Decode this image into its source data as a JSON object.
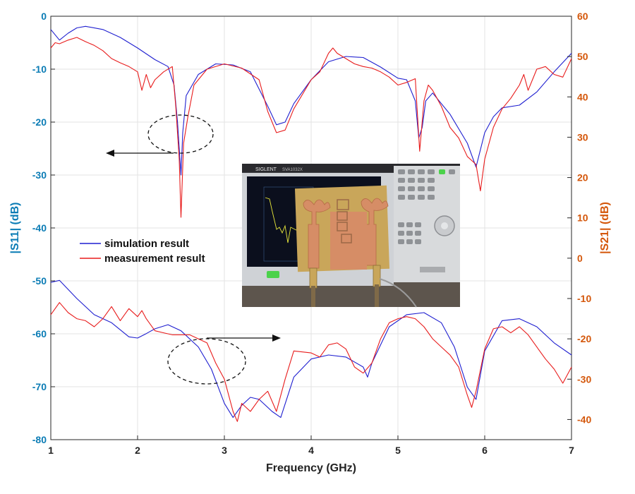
{
  "chart_data": {
    "type": "line",
    "xlabel": "Frequency (GHz)",
    "ylabel_left": "|S11| (dB)",
    "ylabel_right": "|S21| (dB)",
    "xlim": [
      1,
      7
    ],
    "ylim_left": [
      -80,
      0
    ],
    "ylim_right": [
      -45,
      60
    ],
    "xticks": [
      "1",
      "2",
      "3",
      "4",
      "5",
      "6",
      "7"
    ],
    "yticks_left": [
      "0",
      "-10",
      "-20",
      "-30",
      "-40",
      "-50",
      "-60",
      "-70",
      "-80"
    ],
    "yticks_right": [
      "60",
      "50",
      "40",
      "30",
      "20",
      "10",
      "0",
      "-10",
      "-20",
      "-30",
      "-40"
    ],
    "grid": true,
    "legend": {
      "placement": "middle-left",
      "entries": [
        {
          "label": "simulation result",
          "color": "#1f1fd0"
        },
        {
          "label": "measurement result",
          "color": "#e81c1c"
        }
      ]
    },
    "colors": {
      "left_axis": "#0b7cb5",
      "right_axis": "#d4570b"
    },
    "series": [
      {
        "name": "simulation result",
        "axis": "left",
        "color": "#1f1fd0",
        "x": [
          1.0,
          1.1,
          1.2,
          1.3,
          1.4,
          1.6,
          1.8,
          2.0,
          2.2,
          2.35,
          2.42,
          2.46,
          2.5,
          2.52,
          2.56,
          2.7,
          2.9,
          3.1,
          3.3,
          3.5,
          3.6,
          3.7,
          3.8,
          4.0,
          4.2,
          4.4,
          4.6,
          4.8,
          5.0,
          5.1,
          5.2,
          5.24,
          5.28,
          5.32,
          5.4,
          5.6,
          5.8,
          5.9,
          6.0,
          6.1,
          6.2,
          6.4,
          6.6,
          6.8,
          7.0
        ],
        "y": [
          -2.5,
          -4.5,
          -3.2,
          -2.2,
          -1.9,
          -2.5,
          -4.0,
          -6.0,
          -8.2,
          -9.5,
          -13.0,
          -20.0,
          -30.0,
          -22.0,
          -15.0,
          -11.0,
          -9.0,
          -9.2,
          -10.5,
          -17.0,
          -20.5,
          -20.0,
          -16.5,
          -12.0,
          -8.6,
          -7.6,
          -7.8,
          -9.6,
          -11.7,
          -12.0,
          -16.0,
          -23.0,
          -21.0,
          -16.0,
          -14.5,
          -18.5,
          -24.0,
          -28.5,
          -22.0,
          -19.0,
          -17.3,
          -16.8,
          -14.3,
          -10.5,
          -7.0
        ]
      },
      {
        "name": "measurement result",
        "axis": "left",
        "color": "#e81c1c",
        "x": [
          1.0,
          1.05,
          1.1,
          1.2,
          1.3,
          1.4,
          1.5,
          1.6,
          1.7,
          1.8,
          1.9,
          2.0,
          2.05,
          2.1,
          2.15,
          2.2,
          2.3,
          2.4,
          2.44,
          2.48,
          2.5,
          2.53,
          2.58,
          2.65,
          2.8,
          3.0,
          3.2,
          3.4,
          3.5,
          3.6,
          3.7,
          3.8,
          4.0,
          4.1,
          4.2,
          4.25,
          4.3,
          4.4,
          4.5,
          4.6,
          4.7,
          4.8,
          4.9,
          5.0,
          5.1,
          5.2,
          5.25,
          5.3,
          5.35,
          5.4,
          5.5,
          5.6,
          5.7,
          5.8,
          5.9,
          5.95,
          6.0,
          6.1,
          6.2,
          6.3,
          6.4,
          6.45,
          6.5,
          6.6,
          6.7,
          6.8,
          6.9,
          7.0
        ],
        "y": [
          -6.0,
          -5.0,
          -5.2,
          -4.5,
          -4.0,
          -4.8,
          -5.5,
          -6.5,
          -8.0,
          -8.8,
          -9.5,
          -10.5,
          -14.0,
          -11.0,
          -13.5,
          -12.0,
          -10.5,
          -9.5,
          -17.0,
          -27.0,
          -38.0,
          -24.0,
          -19.0,
          -13.0,
          -10.0,
          -9.0,
          -9.8,
          -12.0,
          -18.0,
          -22.0,
          -21.5,
          -17.5,
          -12.0,
          -10.5,
          -7.0,
          -6.0,
          -7.0,
          -8.0,
          -9.0,
          -9.5,
          -9.8,
          -10.5,
          -11.5,
          -13.0,
          -12.5,
          -11.8,
          -25.5,
          -16.0,
          -13.0,
          -14.0,
          -17.0,
          -21.0,
          -23.0,
          -26.5,
          -28.0,
          -33.0,
          -27.0,
          -21.0,
          -17.5,
          -15.5,
          -13.0,
          -11.0,
          -14.0,
          -10.0,
          -9.5,
          -11.0,
          -11.5,
          -8.0
        ]
      },
      {
        "name": "simulation result",
        "axis": "right",
        "color": "#1f1fd0",
        "x": [
          1.0,
          1.1,
          1.3,
          1.5,
          1.7,
          1.9,
          2.0,
          2.1,
          2.2,
          2.35,
          2.5,
          2.7,
          2.85,
          3.0,
          3.1,
          3.2,
          3.3,
          3.4,
          3.55,
          3.65,
          3.8,
          4.0,
          4.2,
          4.4,
          4.6,
          4.65,
          4.7,
          4.9,
          5.1,
          5.3,
          5.5,
          5.65,
          5.8,
          5.9,
          6.0,
          6.2,
          6.4,
          6.6,
          6.8,
          7.0
        ],
        "y": [
          -6.0,
          -5.5,
          -10.0,
          -14.0,
          -16.0,
          -19.5,
          -19.8,
          -18.7,
          -17.5,
          -16.5,
          -18.0,
          -22.0,
          -27.5,
          -36.0,
          -39.5,
          -36.5,
          -34.5,
          -35.0,
          -38.0,
          -39.5,
          -29.5,
          -25.0,
          -24.0,
          -24.5,
          -27.0,
          -29.5,
          -26.0,
          -17.0,
          -14.0,
          -13.5,
          -16.0,
          -22.0,
          -32.0,
          -35.0,
          -23.0,
          -15.5,
          -15.0,
          -17.0,
          -21.0,
          -24.0
        ]
      },
      {
        "name": "measurement result",
        "axis": "right",
        "color": "#e81c1c",
        "x": [
          1.0,
          1.1,
          1.2,
          1.3,
          1.4,
          1.5,
          1.6,
          1.7,
          1.8,
          1.9,
          2.0,
          2.05,
          2.1,
          2.2,
          2.3,
          2.4,
          2.6,
          2.8,
          2.9,
          3.0,
          3.1,
          3.15,
          3.2,
          3.3,
          3.4,
          3.5,
          3.6,
          3.7,
          3.8,
          4.0,
          4.1,
          4.2,
          4.3,
          4.4,
          4.5,
          4.6,
          4.7,
          4.8,
          4.9,
          5.0,
          5.1,
          5.2,
          5.3,
          5.4,
          5.5,
          5.6,
          5.7,
          5.8,
          5.85,
          5.9,
          6.0,
          6.1,
          6.2,
          6.3,
          6.4,
          6.5,
          6.6,
          6.7,
          6.8,
          6.9,
          7.0
        ],
        "y": [
          -14.0,
          -11.0,
          -13.5,
          -15.0,
          -15.5,
          -17.0,
          -15.0,
          -12.0,
          -15.5,
          -12.5,
          -14.5,
          -13.0,
          -15.0,
          -18.0,
          -18.5,
          -19.0,
          -19.0,
          -21.0,
          -26.0,
          -30.0,
          -38.0,
          -40.5,
          -36.0,
          -38.0,
          -35.0,
          -33.0,
          -38.0,
          -30.0,
          -23.0,
          -23.5,
          -24.5,
          -21.5,
          -21.0,
          -22.5,
          -27.0,
          -28.5,
          -26.0,
          -20.0,
          -16.0,
          -15.0,
          -14.5,
          -15.0,
          -17.0,
          -20.0,
          -22.0,
          -24.0,
          -27.0,
          -34.0,
          -37.0,
          -33.0,
          -22.5,
          -17.5,
          -17.0,
          -18.5,
          -17.0,
          -19.0,
          -22.0,
          -25.0,
          -27.5,
          -31.0,
          -27.0
        ]
      }
    ]
  },
  "inset_photo": {
    "instrument_brand": "SIGLENT",
    "instrument_model": "SVA1032X"
  }
}
